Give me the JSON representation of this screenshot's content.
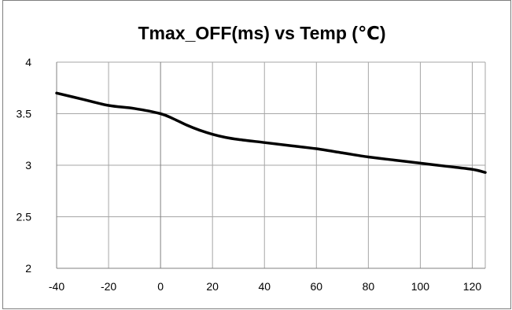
{
  "chart_data": {
    "type": "line",
    "title": "Tmax_OFF(ms)  vs Temp (℃)",
    "xlabel": "",
    "ylabel": "",
    "xlim": [
      -40,
      125
    ],
    "ylim": [
      2,
      4
    ],
    "x_ticks": [
      -40,
      -20,
      0,
      20,
      40,
      60,
      80,
      100,
      120
    ],
    "x_tick_labels": [
      "-40",
      "-20",
      "0",
      "20",
      "40",
      "60",
      "80",
      "100",
      "120"
    ],
    "y_ticks": [
      2,
      2.5,
      3,
      3.5,
      4
    ],
    "y_tick_labels": [
      "2",
      "2.5",
      "3",
      "3.5",
      "4"
    ],
    "grid": true,
    "legend": "none",
    "series": [
      {
        "x": [
          -40,
          -30,
          -20,
          -10,
          0,
          5,
          10,
          15,
          20,
          25,
          30,
          40,
          50,
          60,
          70,
          80,
          90,
          100,
          110,
          120,
          125
        ],
        "y": [
          3.7,
          3.64,
          3.58,
          3.55,
          3.5,
          3.45,
          3.39,
          3.34,
          3.3,
          3.27,
          3.25,
          3.22,
          3.19,
          3.16,
          3.12,
          3.08,
          3.05,
          3.02,
          2.99,
          2.96,
          2.93
        ]
      }
    ],
    "colors": {
      "line": "#000000",
      "grid": "#a6a6a6",
      "axis": "#808080",
      "frame": "#7f7f7f"
    }
  }
}
